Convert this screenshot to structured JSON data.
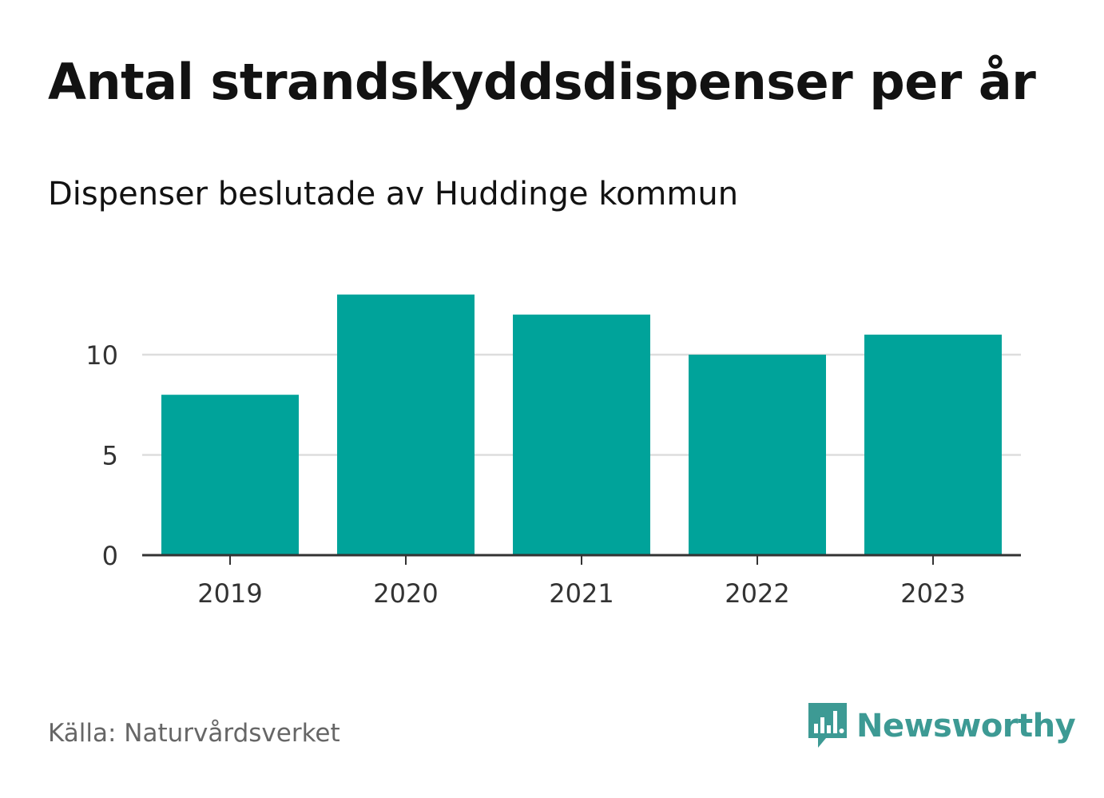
{
  "title": "Antal strandskyddsdispenser per år",
  "subtitle": "Dispenser beslutade av Huddinge kommun",
  "source": "Källa: Naturvårdsverket",
  "brand": {
    "name": "Newsworthy",
    "icon": "newsworthy-logo-icon"
  },
  "colors": {
    "bar": "#00a39a",
    "grid": "#dddddd",
    "axis": "#333333",
    "brand": "#3d9a94"
  },
  "chart_data": {
    "type": "bar",
    "title": "Antal strandskyddsdispenser per år",
    "subtitle": "Dispenser beslutade av Huddinge kommun",
    "categories": [
      "2019",
      "2020",
      "2021",
      "2022",
      "2023"
    ],
    "values": [
      8,
      13,
      12,
      10,
      11
    ],
    "xlabel": "",
    "ylabel": "",
    "ylim": [
      0,
      13
    ],
    "yticks": [
      0,
      5,
      10
    ],
    "grid": true,
    "legend": "none"
  }
}
